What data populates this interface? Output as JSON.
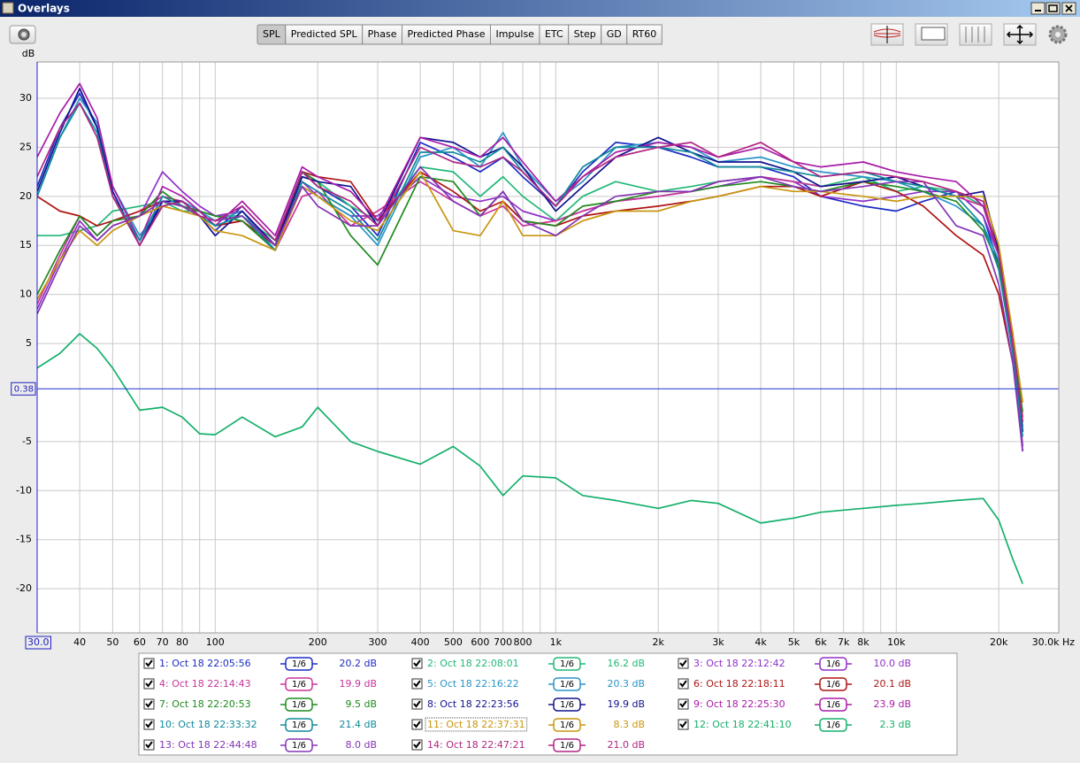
{
  "window": {
    "title": "Overlays"
  },
  "toolbar": {
    "tabs": [
      "SPL",
      "Predicted SPL",
      "Phase",
      "Predicted Phase",
      "Impulse",
      "ETC",
      "Step",
      "GD",
      "RT60"
    ],
    "selected": 0
  },
  "chart_data": {
    "type": "line",
    "ylabel": "dB",
    "xscale": "log",
    "grid": true,
    "xlim": [
      30,
      30000
    ],
    "ylim": [
      -24.5,
      33.7
    ],
    "xticks": [
      {
        "value": 30,
        "label": "30.0"
      },
      40,
      50,
      60,
      70,
      80,
      100,
      200,
      300,
      400,
      500,
      600,
      700,
      800,
      {
        "value": 1000,
        "label": "1k"
      },
      {
        "value": 2000,
        "label": "2k"
      },
      {
        "value": 3000,
        "label": "3k"
      },
      {
        "value": 4000,
        "label": "4k"
      },
      {
        "value": 5000,
        "label": "5k"
      },
      {
        "value": 6000,
        "label": "6k"
      },
      {
        "value": 7000,
        "label": "7k"
      },
      {
        "value": 8000,
        "label": "8k"
      },
      {
        "value": 10000,
        "label": "10k"
      },
      {
        "value": 20000,
        "label": "20k"
      },
      {
        "value": 30000,
        "label": "30.0k Hz"
      }
    ],
    "xminor": [
      90,
      900,
      9000
    ],
    "yticks": [
      30,
      25,
      20,
      15,
      10,
      5,
      -5,
      -10,
      -15,
      -20
    ],
    "cursor": 0.38,
    "x": [
      30,
      35,
      40,
      45,
      50,
      60,
      70,
      80,
      90,
      100,
      120,
      150,
      180,
      200,
      250,
      300,
      400,
      500,
      600,
      700,
      800,
      1000,
      1200,
      1500,
      2000,
      2500,
      3000,
      4000,
      5000,
      6000,
      8000,
      10000,
      12000,
      15000,
      18000,
      20000,
      22000,
      23500
    ],
    "series": [
      {
        "name": "1: Oct 18 22:05:56",
        "color": "#1c2cc4",
        "smoothing": "1/6",
        "level": "20.2 dB",
        "values": [
          21,
          27,
          30.5,
          27,
          20,
          15.5,
          19.5,
          19,
          18,
          16.5,
          19,
          15.5,
          22.5,
          21,
          19,
          16,
          25.5,
          24,
          22.5,
          24,
          22,
          19,
          22.5,
          25.5,
          25,
          24,
          23,
          23,
          22,
          20,
          19,
          18.5,
          19.5,
          20.5,
          18,
          13,
          4,
          -4
        ]
      },
      {
        "name": "2: Oct 18 22:08:01",
        "color": "#22b877",
        "smoothing": "1/6",
        "level": "16.2 dB",
        "values": [
          16,
          16,
          16.5,
          17,
          18.5,
          19,
          19.5,
          18.5,
          18.5,
          18,
          18,
          15.5,
          22,
          21.5,
          19,
          17.5,
          23,
          22.5,
          20,
          22,
          20,
          17.5,
          20,
          21.5,
          20.5,
          21,
          21.5,
          22,
          21.5,
          21,
          22,
          20.5,
          21,
          20.5,
          19,
          14,
          4.5,
          -3
        ]
      },
      {
        "name": "3: Oct 18 22:12:42",
        "color": "#9030c8",
        "smoothing": "1/6",
        "level": "10.0 dB",
        "values": [
          8.5,
          13.5,
          17.5,
          15.5,
          17,
          18,
          22.5,
          20.5,
          19,
          18,
          18.5,
          15,
          21.5,
          20,
          18,
          18,
          22,
          20,
          19.5,
          20,
          18.5,
          17.5,
          18.5,
          19.5,
          20,
          20.5,
          21,
          22,
          21.5,
          20,
          19.5,
          20,
          20.5,
          20.5,
          18,
          14,
          6,
          -5.5
        ]
      },
      {
        "name": "4: Oct 18 22:14:43",
        "color": "#c8349a",
        "smoothing": "1/6",
        "level": "19.9 dB",
        "values": [
          9,
          14,
          18,
          16,
          17.5,
          18.5,
          20,
          19.5,
          18.5,
          17,
          17.5,
          14.5,
          20,
          20.5,
          17,
          18.5,
          21.5,
          19.5,
          18,
          19,
          17,
          17.5,
          18.5,
          19.5,
          20,
          20.5,
          21.5,
          22,
          21.5,
          21,
          21.5,
          22,
          21,
          20,
          19,
          14.5,
          5,
          -2.5
        ]
      },
      {
        "name": "5: Oct 18 22:16:22",
        "color": "#2a94c8",
        "smoothing": "1/6",
        "level": "20.3 dB",
        "values": [
          20,
          26,
          30,
          27.5,
          21,
          16,
          19,
          19.5,
          18.5,
          17.5,
          18.5,
          14.5,
          21,
          20,
          18,
          15,
          24,
          25,
          23,
          26.5,
          23,
          19.5,
          21.5,
          25,
          25.5,
          25,
          23.5,
          24,
          23,
          22.5,
          22,
          21.5,
          20.5,
          19,
          17,
          13.5,
          5,
          -3.5
        ]
      },
      {
        "name": "6: Oct 18 22:18:11",
        "color": "#b01414",
        "smoothing": "1/6",
        "level": "20.1 dB",
        "values": [
          20,
          18.5,
          18,
          17,
          17.5,
          18.5,
          19.5,
          19,
          18.5,
          17,
          17.5,
          15,
          22.5,
          22,
          21.5,
          17.5,
          22.5,
          20.5,
          18.5,
          19.5,
          17.5,
          17,
          18,
          18.5,
          19,
          19.5,
          20,
          21,
          21,
          20,
          21.5,
          20.5,
          19,
          16,
          14,
          10,
          3,
          -1
        ]
      },
      {
        "name": "7: Oct 18 22:20:53",
        "color": "#1e8a1e",
        "smoothing": "1/6",
        "level": "9.5 dB",
        "values": [
          10,
          14.5,
          18,
          16,
          17.5,
          18,
          20.5,
          19,
          18.5,
          18,
          17.5,
          14.5,
          22.5,
          21.5,
          16,
          13,
          22,
          21.5,
          18,
          20.5,
          17.5,
          17,
          19,
          19.5,
          20.5,
          20.5,
          21,
          21.5,
          21,
          20.5,
          21.5,
          21,
          20.5,
          19.5,
          16.5,
          13,
          5,
          -2
        ]
      },
      {
        "name": "8: Oct 18 22:23:56",
        "color": "#12128e",
        "smoothing": "1/6",
        "level": "19.9 dB",
        "values": [
          20.5,
          26.5,
          31,
          27,
          20.5,
          15,
          19.5,
          19.5,
          18,
          16,
          18.5,
          15,
          22,
          21.5,
          21,
          17,
          26,
          25.5,
          24,
          25,
          23,
          18.5,
          21,
          24,
          26,
          24.5,
          23.5,
          23.5,
          22.5,
          21,
          21.5,
          22,
          21,
          20,
          20.5,
          14.5,
          5.5,
          -4
        ]
      },
      {
        "name": "9: Oct 18 22:25:30",
        "color": "#a81ca8",
        "smoothing": "1/6",
        "level": "23.9 dB",
        "values": [
          24,
          28.5,
          31.5,
          28,
          21,
          15.5,
          21,
          20,
          18.5,
          17,
          19.5,
          16,
          23,
          22,
          20.5,
          17.5,
          26,
          25,
          24,
          26,
          23.5,
          19.5,
          22,
          24.5,
          25.5,
          25,
          24,
          25,
          23.5,
          23,
          23.5,
          22.5,
          22,
          21.5,
          19,
          14,
          4.5,
          -6
        ]
      },
      {
        "name": "10: Oct 18 22:33:32",
        "color": "#0f8a9a",
        "smoothing": "1/6",
        "level": "21.4 dB",
        "values": [
          20,
          26,
          29.5,
          26.5,
          20,
          15.5,
          20,
          19,
          18,
          17,
          18,
          14.5,
          21.5,
          20.5,
          18.5,
          15.5,
          24.5,
          24.5,
          23.5,
          25,
          22.5,
          19,
          23,
          25,
          25,
          24.5,
          23,
          23,
          22.5,
          22,
          22.5,
          21.5,
          21,
          20,
          17,
          12.5,
          4,
          -4.5
        ]
      },
      {
        "name": "11: Oct 18 22:37:31",
        "color": "#c8960e",
        "smoothing": "1/6",
        "level": "8.3 dB",
        "values": [
          9.5,
          13.5,
          16.5,
          15,
          16.5,
          18,
          19,
          18.5,
          18,
          16.5,
          16,
          14.5,
          21,
          20,
          17.5,
          16.5,
          22.5,
          16.5,
          16,
          19.5,
          16,
          16,
          17.5,
          18.5,
          18.5,
          19.5,
          20,
          21,
          20.5,
          20.5,
          20,
          19.5,
          20,
          20,
          20,
          15,
          6,
          -1
        ]
      },
      {
        "name": "12: Oct 18 22:41:10",
        "color": "#14b06a",
        "smoothing": "1/6",
        "level": "2.3 dB",
        "values": [
          2.5,
          4,
          6,
          4.5,
          2.5,
          -1.8,
          -1.5,
          -2.5,
          -4.2,
          -4.3,
          -2.5,
          -4.5,
          -3.5,
          -1.5,
          -5,
          -6,
          -7.3,
          -5.5,
          -7.5,
          -10.5,
          -8.5,
          -8.7,
          -10.5,
          -11,
          -11.8,
          -11,
          -11.3,
          -13.3,
          -12.8,
          -12.2,
          -11.8,
          -11.5,
          -11.3,
          -11,
          -10.8,
          -13,
          -17,
          -19.5
        ]
      },
      {
        "name": "13: Oct 18 22:44:48",
        "color": "#8434b4",
        "smoothing": "1/6",
        "level": "8.0 dB",
        "values": [
          8,
          13,
          17,
          15.5,
          17,
          18,
          19.5,
          19,
          18,
          17.5,
          18,
          15,
          21,
          19,
          17,
          17,
          23,
          19.5,
          18,
          20.5,
          17.5,
          16,
          18,
          20,
          20.5,
          20.5,
          21.5,
          22,
          21,
          20.5,
          21,
          21.5,
          21.5,
          17,
          16,
          11,
          3,
          -6
        ]
      },
      {
        "name": "14: Oct 18 22:47:21",
        "color": "#b02484",
        "smoothing": "1/6",
        "level": "21.0 dB",
        "values": [
          22,
          27,
          29.5,
          26,
          20,
          15,
          19,
          19.5,
          18,
          17.5,
          19,
          15.5,
          22.5,
          21,
          19.5,
          17,
          25,
          23.5,
          23,
          24,
          22.5,
          19,
          22,
          24,
          25,
          25.5,
          24,
          25.5,
          23.5,
          22,
          22.5,
          22,
          21.5,
          20.5,
          19.5,
          14,
          5,
          -3
        ]
      }
    ]
  }
}
